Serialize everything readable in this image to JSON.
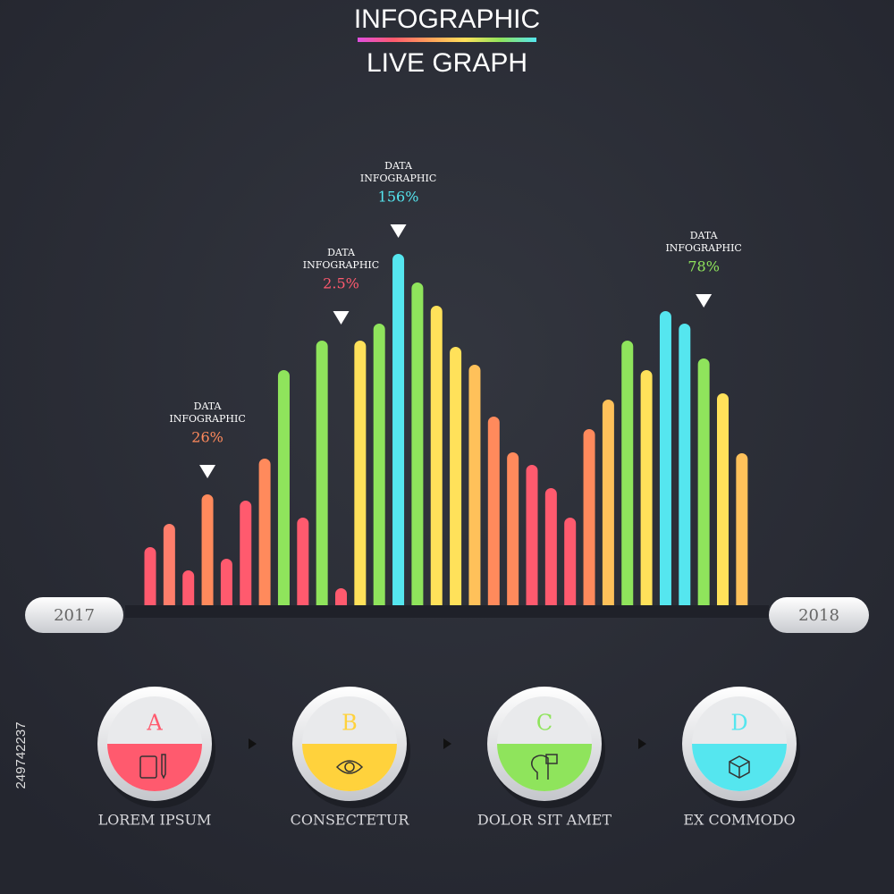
{
  "header": {
    "title": "INFOGRAPHIC",
    "subtitle": "LIVE GRAPH"
  },
  "chart_data": {
    "type": "bar",
    "values": [
      65,
      91,
      39,
      124,
      52,
      117,
      164,
      263,
      98,
      296,
      19,
      296,
      315,
      393,
      361,
      335,
      289,
      269,
      211,
      171,
      157,
      131,
      98,
      197,
      230,
      296,
      263,
      329,
      315,
      276,
      237,
      170
    ],
    "colors": [
      "#ff5a6e",
      "#ff7e6b",
      "#ff5a6e",
      "#ff8a5c",
      "#ff5a6e",
      "#ff5a6e",
      "#ff8a5c",
      "#8fe45c",
      "#ff5a6e",
      "#8fe45c",
      "#ff5a6e",
      "#ffe15a",
      "#8fe45c",
      "#55e6ef",
      "#8fe45c",
      "#ffe15a",
      "#ffe15a",
      "#ffc15a",
      "#ff8a5c",
      "#ff8a5c",
      "#ff5a6e",
      "#ff5a6e",
      "#ff5a6e",
      "#ff8a5c",
      "#ffc15a",
      "#8fe45c",
      "#ffe15a",
      "#55e6ef",
      "#55e6ef",
      "#8fe45c",
      "#ffe15a",
      "#ffc15a"
    ],
    "ylim": [
      0,
      400
    ],
    "annotations": [
      {
        "lines": [
          "DATA",
          "INFOGRAPHIC"
        ],
        "text": "26%",
        "color": "#ff8a5c"
      },
      {
        "lines": [
          "DATA",
          "INFOGRAPHIC"
        ],
        "text": "2.5%",
        "color": "#ff5a6e"
      },
      {
        "lines": [
          "DATA",
          "INFOGRAPHIC"
        ],
        "text": "156%",
        "color": "#55e6ef"
      },
      {
        "lines": [
          "DATA",
          "INFOGRAPHIC"
        ],
        "text": "78%",
        "color": "#8fe45c"
      }
    ]
  },
  "timeline": {
    "start": "2017",
    "end": "2018"
  },
  "steps": [
    {
      "letter": "A",
      "label": "LOREM IPSUM",
      "color": "#ff5a6e"
    },
    {
      "letter": "B",
      "label": "CONSECTETUR",
      "color": "#ffd23c"
    },
    {
      "letter": "C",
      "label": "DOLOR SIT AMET",
      "color": "#8fe45c"
    },
    {
      "letter": "D",
      "label": "EX COMMODO",
      "color": "#55e6ef"
    }
  ],
  "stock_id": "249742237"
}
